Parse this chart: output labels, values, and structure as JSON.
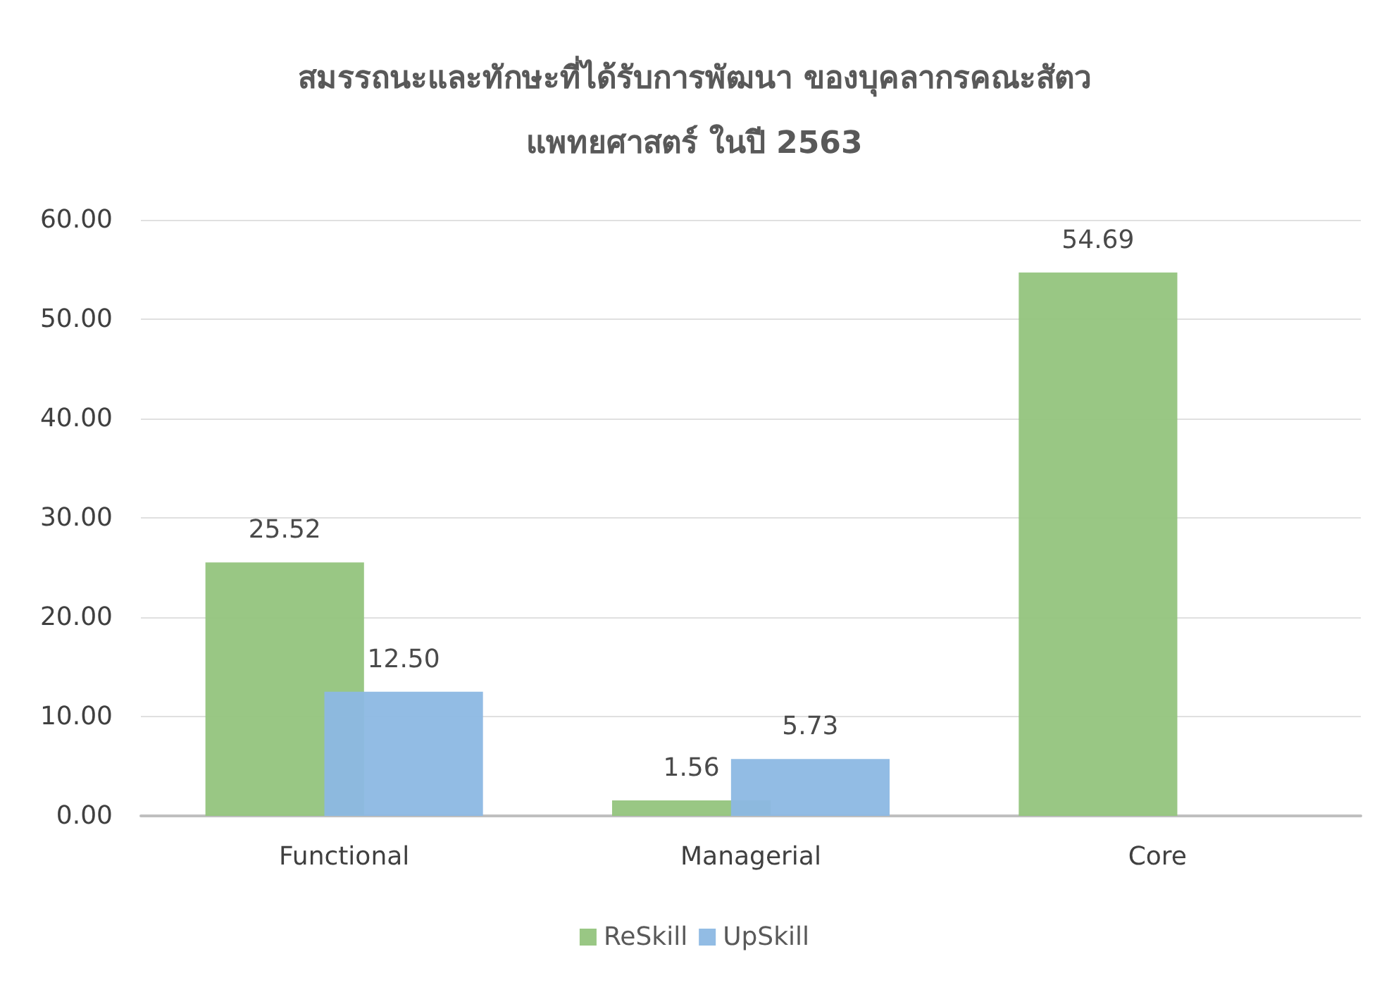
{
  "chart_data": {
    "type": "bar",
    "title": "สมรรถนะและทักษะที่ได้รับการพัฒนา ของบุคลากรคณะสัตว\nแพทยศาสตร์ ในปี 2563",
    "categories": [
      "Functional",
      "Managerial",
      "Core"
    ],
    "series": [
      {
        "name": "ReSkill",
        "color": "#93c47d",
        "values": [
          25.52,
          1.56,
          54.69
        ],
        "value_labels": [
          "25.52",
          "1.56",
          "54.69"
        ]
      },
      {
        "name": "UpSkill",
        "color": "#8cb8e3",
        "values": [
          12.5,
          5.73,
          null
        ],
        "value_labels": [
          "12.50",
          "5.73",
          null
        ]
      }
    ],
    "ylim": [
      0,
      60
    ],
    "yticks": [
      {
        "value": 0,
        "label": "0.00"
      },
      {
        "value": 10,
        "label": "10.00"
      },
      {
        "value": 20,
        "label": "20.00"
      },
      {
        "value": 30,
        "label": "30.00"
      },
      {
        "value": 40,
        "label": "40.00"
      },
      {
        "value": 50,
        "label": "50.00"
      },
      {
        "value": 60,
        "label": "60.00"
      }
    ],
    "grid": "y",
    "legend": "bottom"
  }
}
